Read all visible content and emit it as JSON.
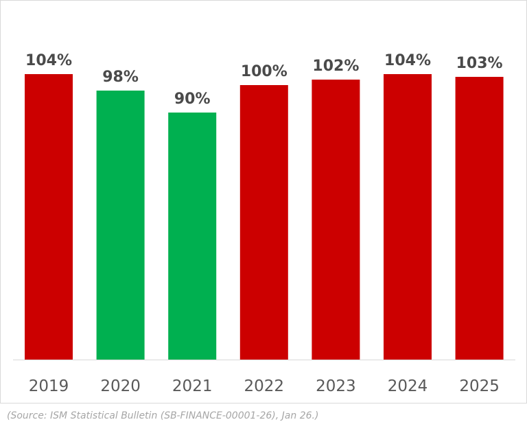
{
  "chart_data": {
    "type": "bar",
    "categories": [
      "2019",
      "2020",
      "2021",
      "2022",
      "2023",
      "2024",
      "2025"
    ],
    "values": [
      104,
      98,
      90,
      100,
      102,
      104,
      103
    ],
    "value_labels": [
      "104%",
      "98%",
      "90%",
      "100%",
      "102%",
      "104%",
      "103%"
    ],
    "bar_colors": [
      "#cc0000",
      "#00b050",
      "#00b050",
      "#cc0000",
      "#cc0000",
      "#cc0000",
      "#cc0000"
    ],
    "ylim": [
      0,
      104
    ],
    "grid": false,
    "legend": "none",
    "title": "",
    "xlabel": "",
    "ylabel": ""
  },
  "source_note": "(Source: ISM Statistical Bulletin (SB-FINANCE-00001-26), Jan 26.)",
  "colors": {
    "value_text": "#4a4a4a",
    "tick_text": "#595959",
    "baseline": "#d9d9d9",
    "source_text": "#a6a6a6"
  }
}
